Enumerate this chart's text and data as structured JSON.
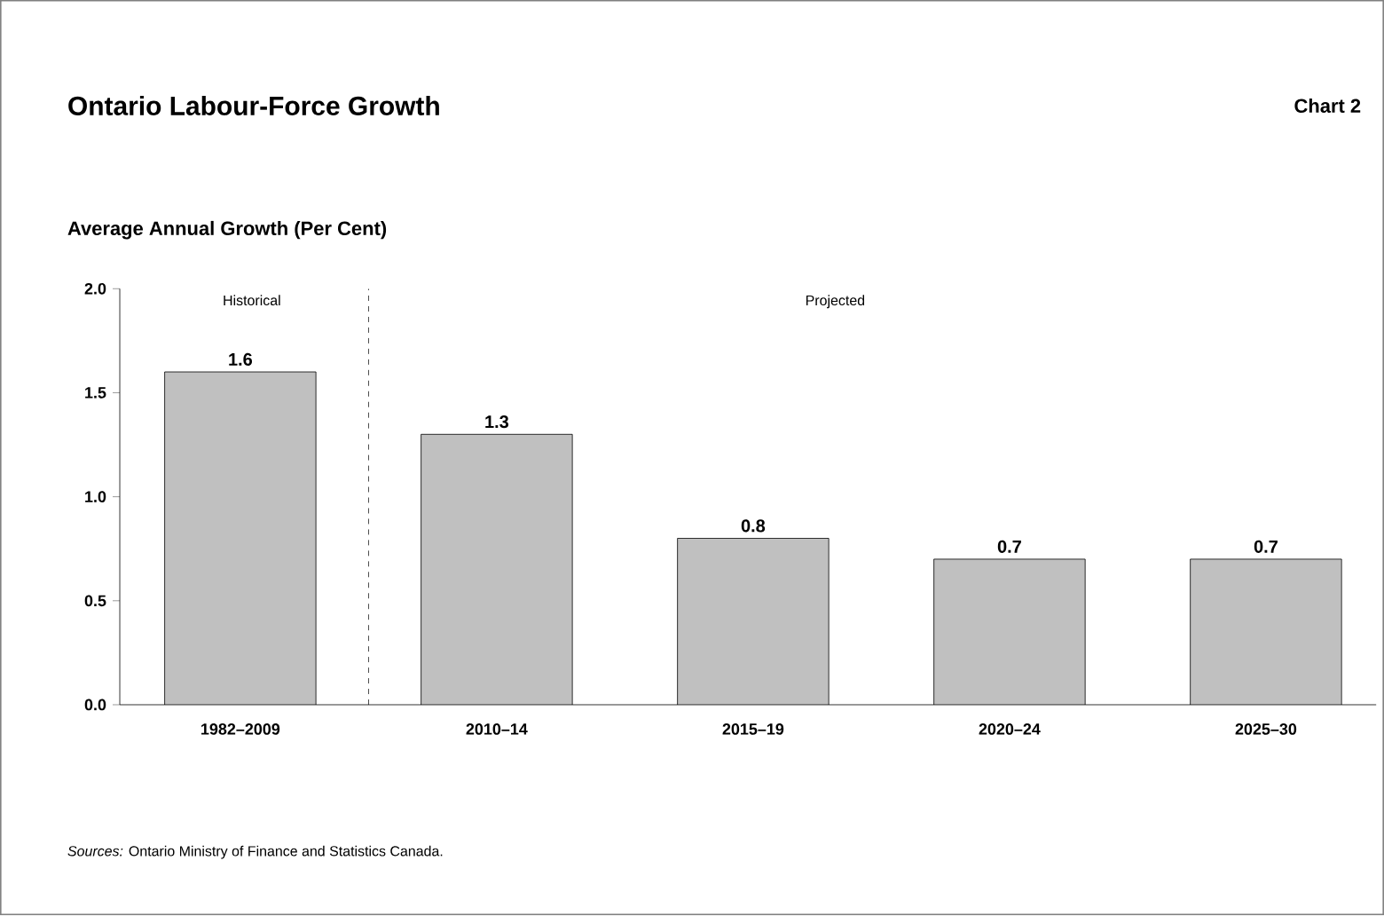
{
  "chart_data": {
    "type": "bar",
    "title": "Ontario Labour-Force Growth",
    "subtitle": "Chart 2",
    "ylabel": "Average Annual Growth (Per Cent)",
    "categories": [
      "1982–2009",
      "2010–14",
      "2015–19",
      "2020–24",
      "2025–30"
    ],
    "values": [
      1.6,
      1.3,
      0.8,
      0.7,
      0.7
    ],
    "color": "#c0c0c0",
    "data_labels": true,
    "ylim": [
      0,
      2
    ],
    "yticks": [
      {
        "value": 0,
        "label": "0.0"
      },
      {
        "value": 0.5,
        "label": "0.5"
      },
      {
        "value": 1,
        "label": "1.0"
      },
      {
        "value": 1.5,
        "label": "1.5"
      },
      {
        "value": 2,
        "label": "2.0"
      }
    ],
    "grid": false,
    "annotations": [
      "Historical",
      "Projected",
      "*Sources:* Ontario Ministry of Finance and Statistics Canada."
    ]
  }
}
